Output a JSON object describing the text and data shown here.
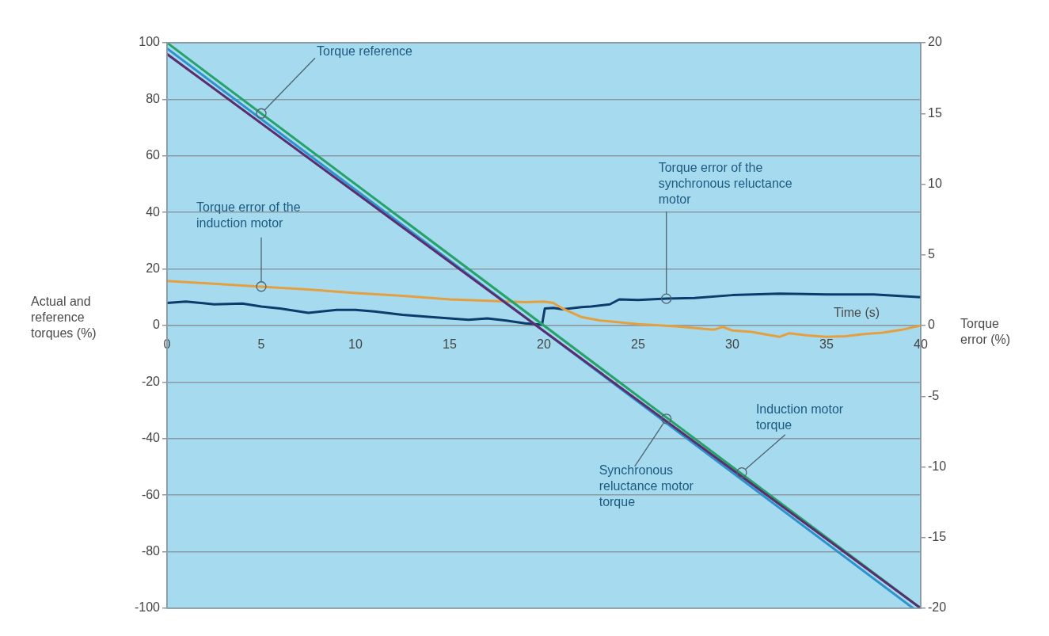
{
  "chart_data": {
    "type": "line",
    "xlabel": "Time (s)",
    "ylabel": "Actual and reference torques (%)",
    "y2label": "Torque error (%)",
    "xlim": [
      0,
      40
    ],
    "xticks": [
      0,
      5,
      10,
      15,
      20,
      25,
      30,
      35,
      40
    ],
    "ylim": [
      -100,
      100
    ],
    "yticks": [
      -100,
      -80,
      -60,
      -40,
      -20,
      0,
      20,
      40,
      60,
      80,
      100
    ],
    "y2lim": [
      -20,
      20
    ],
    "y2ticks": [
      -20,
      -15,
      -10,
      -5,
      0,
      5,
      10,
      15,
      20
    ],
    "grid": "y",
    "legend": false,
    "marker": "none",
    "line_style": "solid",
    "series": [
      {
        "color": "#5b2d6e",
        "x": [
          0,
          40
        ],
        "values": [
          96,
          -100
        ]
      },
      {
        "color": "#2e93cc",
        "x": [
          0,
          39.6
        ],
        "values": [
          98,
          -100
        ]
      },
      {
        "color": "#27a36a",
        "x": [
          0,
          40
        ],
        "values": [
          100,
          -100
        ]
      },
      {
        "color": "#e4a040",
        "axis": "y2",
        "x": [
          0,
          2.5,
          5,
          7.5,
          10,
          12.5,
          15,
          17,
          19,
          20,
          20.5,
          21,
          22,
          23,
          25,
          27,
          29,
          29.5,
          30,
          31,
          32.5,
          33,
          34,
          35,
          36,
          37,
          38,
          39,
          40
        ],
        "values": [
          3.15,
          2.95,
          2.75,
          2.55,
          2.3,
          2.1,
          1.85,
          1.75,
          1.65,
          1.7,
          1.6,
          1.2,
          0.6,
          0.35,
          0.1,
          -0.05,
          -0.3,
          -0.1,
          -0.35,
          -0.45,
          -0.8,
          -0.55,
          -0.7,
          -0.8,
          -0.75,
          -0.6,
          -0.5,
          -0.3,
          0
        ]
      },
      {
        "color": "#0d3b6c",
        "axis": "y2",
        "x": [
          0,
          1,
          2.5,
          4,
          5,
          6,
          7.5,
          9,
          10,
          11,
          12.5,
          14,
          15,
          16,
          17,
          18,
          19,
          19.9,
          20.05,
          20.5,
          21,
          22,
          22.5,
          23.5,
          24,
          25,
          26.5,
          28,
          30,
          32.5,
          35,
          37.5,
          40
        ],
        "values": [
          1.6,
          1.7,
          1.5,
          1.55,
          1.35,
          1.2,
          0.9,
          1.1,
          1.1,
          1.0,
          0.75,
          0.6,
          0.5,
          0.4,
          0.5,
          0.35,
          0.15,
          0.05,
          1.2,
          1.25,
          1.15,
          1.3,
          1.35,
          1.5,
          1.85,
          1.8,
          1.9,
          1.95,
          2.15,
          2.25,
          2.2,
          2.2,
          2.0
        ]
      }
    ],
    "annotations": [
      {
        "text": "Torque reference",
        "x": 5,
        "y": 75
      },
      {
        "text": "Torque error of the induction motor",
        "x": 5,
        "y": 13.8
      },
      {
        "text": "Torque error of the synchronous reluctance motor",
        "x": 26.5,
        "y": 9.5
      },
      {
        "text": "Synchronous reluctance motor torque",
        "x": 26.5,
        "y": -33
      },
      {
        "text": "Induction motor torque",
        "x": 30.5,
        "y": -52
      }
    ]
  }
}
